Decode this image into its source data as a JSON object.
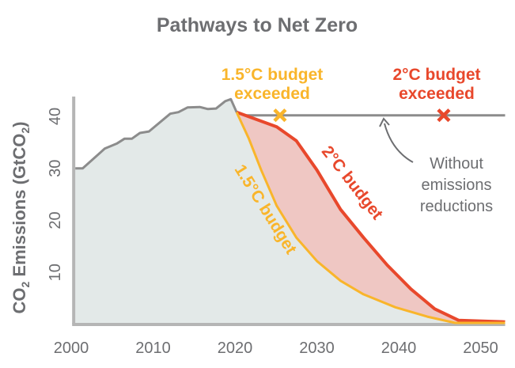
{
  "chart_data": {
    "type": "area",
    "title": "Pathways to Net Zero",
    "ylabel": "CO2 Emissions (GtCO2)",
    "ylabel_parts": {
      "a": "CO",
      "sub1": "2",
      "b": " Emissions (GtCO",
      "sub2": "2",
      "c": ")"
    },
    "xlabel": "",
    "xlim": [
      2000,
      2053
    ],
    "ylim": [
      0,
      44
    ],
    "x_ticks": [
      "2000",
      "2010",
      "2020",
      "2030",
      "2040",
      "2050"
    ],
    "y_ticks": [
      "10",
      "20",
      "30",
      "40"
    ],
    "grid": false,
    "series": [
      {
        "key": "historical",
        "color": "#8c8c8c",
        "points": [
          [
            2000.5,
            30.0
          ],
          [
            2001.4,
            30.0
          ],
          [
            2004.1,
            33.8
          ],
          [
            2005.6,
            34.8
          ],
          [
            2006.5,
            35.7
          ],
          [
            2007.4,
            35.7
          ],
          [
            2008.4,
            36.8
          ],
          [
            2009.5,
            37.1
          ],
          [
            2012.1,
            40.5
          ],
          [
            2013.1,
            40.8
          ],
          [
            2014.2,
            41.7
          ],
          [
            2015.7,
            41.8
          ],
          [
            2016.7,
            41.4
          ],
          [
            2017.7,
            41.5
          ],
          [
            2018.8,
            42.9
          ],
          [
            2019.5,
            43.3
          ],
          [
            2020.2,
            40.8
          ],
          [
            2021.2,
            40.2
          ]
        ]
      },
      {
        "key": "no_reduction",
        "color": "#8c8c8c",
        "points": [
          [
            2021.2,
            40.2
          ],
          [
            2053,
            40.2
          ]
        ]
      },
      {
        "name": "2°C budget",
        "key": "two_c",
        "color": "#e8482c",
        "points": [
          [
            2020.2,
            40.8
          ],
          [
            2025.1,
            38.0
          ],
          [
            2027.5,
            35.3
          ],
          [
            2030,
            29.7
          ],
          [
            2032.9,
            22.1
          ],
          [
            2035.7,
            16.7
          ],
          [
            2038.6,
            11.4
          ],
          [
            2041.5,
            6.8
          ],
          [
            2044.4,
            3.0
          ],
          [
            2047.3,
            0.8
          ],
          [
            2053,
            0.5
          ]
        ]
      },
      {
        "name": "1.5°C budget",
        "key": "one_five_c",
        "color": "#f9b52b",
        "points": [
          [
            2020.2,
            40.8
          ],
          [
            2021.7,
            35.7
          ],
          [
            2023.2,
            29.7
          ],
          [
            2025.1,
            22.8
          ],
          [
            2027.5,
            16.7
          ],
          [
            2030,
            12.2
          ],
          [
            2032.9,
            8.4
          ],
          [
            2035.7,
            5.8
          ],
          [
            2039.6,
            3.3
          ],
          [
            2043.5,
            1.5
          ],
          [
            2046.9,
            0.3
          ],
          [
            2053,
            0.3
          ]
        ]
      }
    ],
    "colors": {
      "area_fill": "#e3e9e8",
      "band_fill": "#efc7c3",
      "axis": "#b5b5b5",
      "text": "#6d6e71"
    },
    "markers": [
      {
        "label_line1": "1.5°C budget",
        "label_line2": "exceeded",
        "x": 2025.5,
        "y": 40.2,
        "symbol": "x",
        "color": "#f9b52b"
      },
      {
        "label_line1": "2°C budget",
        "label_line2": "exceeded",
        "x": 2045.5,
        "y": 40.2,
        "symbol": "x",
        "color": "#e8482c"
      }
    ],
    "annotation": {
      "lines": [
        "Without",
        "emissions",
        "reductions"
      ],
      "points_to": [
        2038.5,
        40.2
      ]
    }
  }
}
